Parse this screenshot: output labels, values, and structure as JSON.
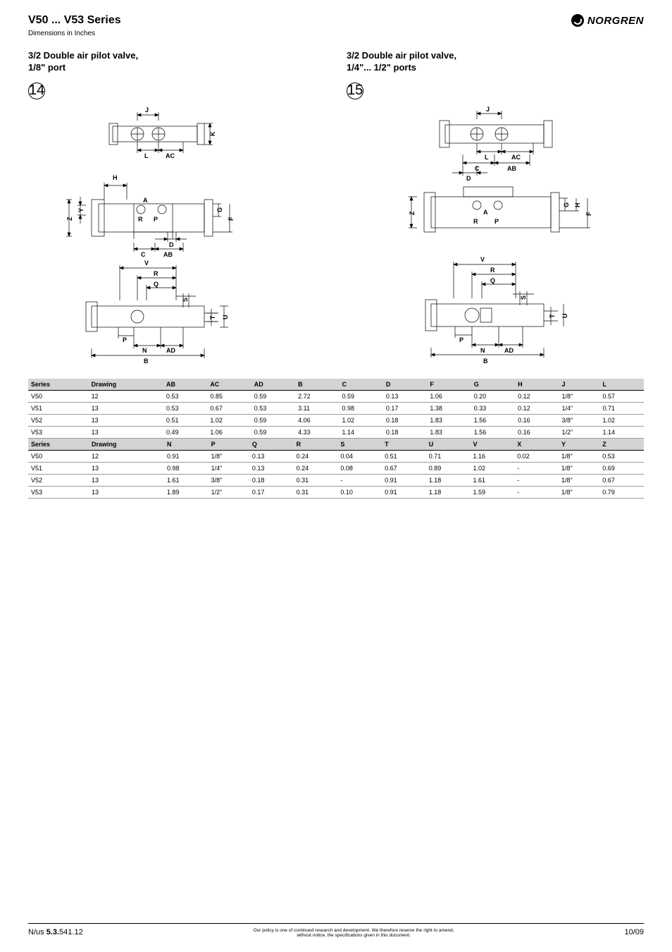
{
  "header": {
    "series_title": "V50 ... V53 Series",
    "subtitle": "Dimensions in Inches",
    "logo_text": "NORGREN"
  },
  "products": [
    {
      "title_l1": "3/2 Double air pilot valve,",
      "title_l2": "1/8\" port",
      "circled": "14"
    },
    {
      "title_l1": "3/2 Double air pilot valve,",
      "title_l2": "1/4\"... 1/2\" ports",
      "circled": "15"
    }
  ],
  "drawing_labels": {
    "J": "J",
    "K": "K",
    "L": "L",
    "AC": "AC",
    "H": "H",
    "Y": "Y",
    "A": "A",
    "G": "G",
    "F": "F",
    "R": "R",
    "P": "P",
    "D": "D",
    "C": "C",
    "AB": "AB",
    "V": "V",
    "Q": "Q",
    "S": "S",
    "T": "T",
    "U": "U",
    "N": "N",
    "AD": "AD",
    "B": "B",
    "Z": "Z"
  },
  "tables": {
    "t1": {
      "headers": [
        "Series",
        "Drawing",
        "AB",
        "AC",
        "AD",
        "B",
        "C",
        "D",
        "F",
        "G",
        "H",
        "J",
        "L"
      ],
      "rows": [
        [
          "V50",
          "12",
          "0.53",
          "0.85",
          "0.59",
          "2.72",
          "0.59",
          "0.13",
          "1.06",
          "0.20",
          "0.12",
          "1/8\"",
          "0.57"
        ],
        [
          "V51",
          "13",
          "0.53",
          "0.67",
          "0.53",
          "3.11",
          "0.98",
          "0.17",
          "1.38",
          "0.33",
          "0.12",
          "1/4\"",
          "0.71"
        ],
        [
          "V52",
          "13",
          "0.51",
          "1.02",
          "0.59",
          "4.06",
          "1.02",
          "0.18",
          "1.83",
          "1.56",
          "0.16",
          "3/8\"",
          "1.02"
        ],
        [
          "V53",
          "13",
          "0.49",
          "1.06",
          "0.59",
          "4.33",
          "1.14",
          "0.18",
          "1.83",
          "1.56",
          "0.16",
          "1/2\"",
          "1.14"
        ]
      ]
    },
    "t2": {
      "headers": [
        "Series",
        "Drawing",
        "N",
        "P",
        "Q",
        "R",
        "S",
        "T",
        "U",
        "V",
        "X",
        "Y",
        "Z"
      ],
      "rows": [
        [
          "V50",
          "12",
          "0.91",
          "1/8\"",
          "0.13",
          "0.24",
          "0.04",
          "0.51",
          "0.71",
          "1.16",
          "0.02",
          "1/8\"",
          "0.53"
        ],
        [
          "V51",
          "13",
          "0.98",
          "1/4\"",
          "0.13",
          "0.24",
          "0.08",
          "0.67",
          "0.89",
          "1.02",
          "-",
          "1/8\"",
          "0.69"
        ],
        [
          "V52",
          "13",
          "1.61",
          "3/8\"",
          "0.18",
          "0.31",
          "-",
          "0.91",
          "1.18",
          "1.61",
          "-",
          "1/8\"",
          "0.67"
        ],
        [
          "V53",
          "13",
          "1.89",
          "1/2\"",
          "0.17",
          "0.31",
          "0.10",
          "0.91",
          "1.18",
          "1.59",
          "-",
          "1/8\"",
          "0.79"
        ]
      ]
    }
  },
  "footer": {
    "left_prefix": "N/us ",
    "left_bold": "5.3.",
    "left_suffix": "541.12",
    "center_l1": "Our policy is one of continued research and development. We therefore reserve the right to amend,",
    "center_l2": "without notice, the specifications given in this document.",
    "right": "10/09"
  },
  "style": {
    "header_gray": "#d3d3d3",
    "border_color": "#000",
    "row_border": "#999"
  }
}
